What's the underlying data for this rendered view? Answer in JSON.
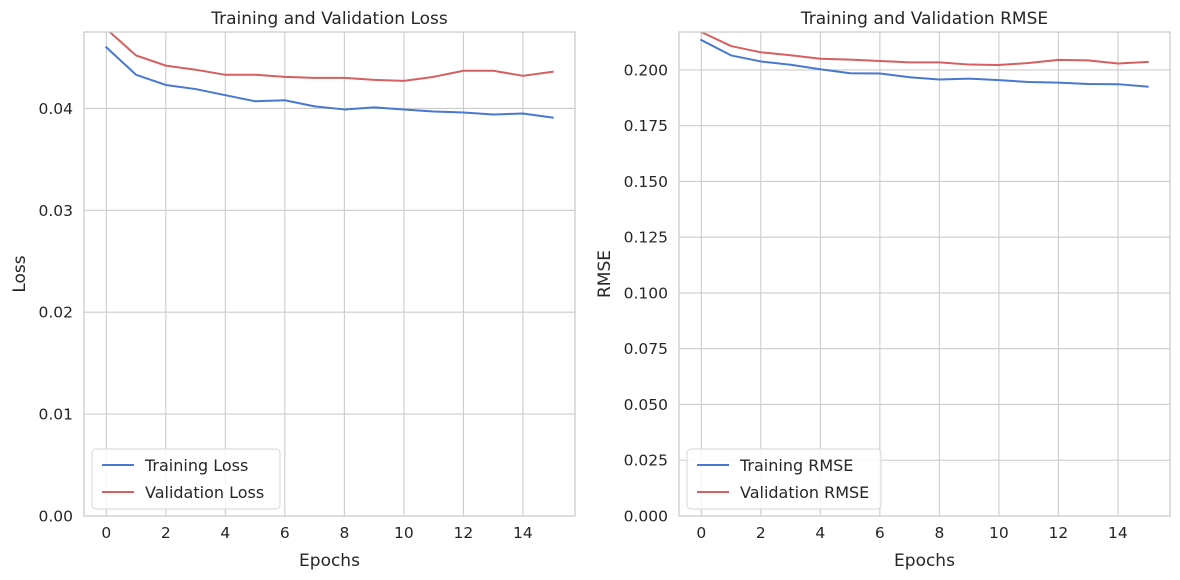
{
  "chart_data": [
    {
      "type": "line",
      "title": "Training and Validation Loss",
      "xlabel": "Epochs",
      "ylabel": "Loss",
      "xlim": [
        -0.75,
        15.75
      ],
      "ylim": [
        0,
        0.0475
      ],
      "xticks": [
        0,
        2,
        4,
        6,
        8,
        10,
        12,
        14
      ],
      "xtick_labels": [
        "0",
        "2",
        "4",
        "6",
        "8",
        "10",
        "12",
        "14"
      ],
      "yticks": [
        0,
        0.01,
        0.02,
        0.03,
        0.04
      ],
      "ytick_labels": [
        "0.00",
        "0.01",
        "0.02",
        "0.03",
        "0.04"
      ],
      "grid": true,
      "legend_position": "lower-left",
      "x": [
        0,
        1,
        2,
        3,
        4,
        5,
        6,
        7,
        8,
        9,
        10,
        11,
        12,
        13,
        14,
        15
      ],
      "series": [
        {
          "name": "Training Loss",
          "color": "#4878d0",
          "values": [
            0.046,
            0.0433,
            0.0423,
            0.0419,
            0.0413,
            0.0407,
            0.0408,
            0.0402,
            0.0399,
            0.0401,
            0.0399,
            0.0397,
            0.0396,
            0.0394,
            0.0395,
            0.0391
          ]
        },
        {
          "name": "Validation Loss",
          "color": "#d65f5f",
          "values": [
            0.0478,
            0.0452,
            0.0442,
            0.0438,
            0.0433,
            0.0433,
            0.0431,
            0.043,
            0.043,
            0.0428,
            0.0427,
            0.0431,
            0.0437,
            0.0437,
            0.0432,
            0.0436
          ]
        }
      ]
    },
    {
      "type": "line",
      "title": "Training and Validation RMSE",
      "xlabel": "Epochs",
      "ylabel": "RMSE",
      "xlim": [
        -0.75,
        15.75
      ],
      "ylim": [
        0,
        0.217
      ],
      "xticks": [
        0,
        2,
        4,
        6,
        8,
        10,
        12,
        14
      ],
      "xtick_labels": [
        "0",
        "2",
        "4",
        "6",
        "8",
        "10",
        "12",
        "14"
      ],
      "yticks": [
        0,
        0.025,
        0.05,
        0.075,
        0.1,
        0.125,
        0.15,
        0.175,
        0.2
      ],
      "ytick_labels": [
        "0.000",
        "0.025",
        "0.050",
        "0.075",
        "0.100",
        "0.125",
        "0.150",
        "0.175",
        "0.200"
      ],
      "grid": true,
      "legend_position": "lower-left",
      "x": [
        0,
        1,
        2,
        3,
        4,
        5,
        6,
        7,
        8,
        9,
        10,
        11,
        12,
        13,
        14,
        15
      ],
      "series": [
        {
          "name": "Training RMSE",
          "color": "#4878d0",
          "values": [
            0.2134,
            0.2065,
            0.2038,
            0.2023,
            0.2003,
            0.1985,
            0.1984,
            0.1967,
            0.1957,
            0.1961,
            0.1954,
            0.1946,
            0.1943,
            0.1937,
            0.1936,
            0.1925
          ]
        },
        {
          "name": "Validation RMSE",
          "color": "#d65f5f",
          "values": [
            0.217,
            0.2107,
            0.2079,
            0.2066,
            0.205,
            0.2046,
            0.204,
            0.2034,
            0.2034,
            0.2024,
            0.2022,
            0.2031,
            0.2045,
            0.2043,
            0.2029,
            0.2036
          ]
        }
      ]
    }
  ]
}
